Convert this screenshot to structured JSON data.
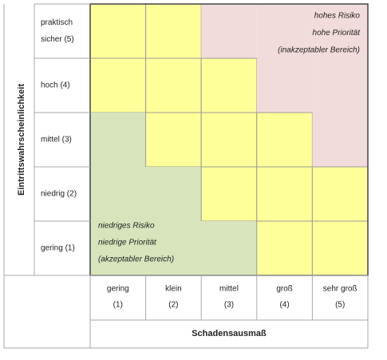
{
  "y_axis_title": "Eintrittswahrscheinlichkeit",
  "x_axis_title": "Schadensausmaß",
  "rows": [
    {
      "lines": [
        "praktisch",
        "sicher  (5)"
      ]
    },
    {
      "lines": [
        "hoch  (4)"
      ]
    },
    {
      "lines": [
        "mittel  (3)"
      ]
    },
    {
      "lines": [
        "niedrig  (2)"
      ]
    },
    {
      "lines": [
        "gering  (1)"
      ]
    }
  ],
  "columns": [
    {
      "lines": [
        "gering",
        "(1)"
      ]
    },
    {
      "lines": [
        "klein",
        "(2)"
      ]
    },
    {
      "lines": [
        "mittel",
        "(3)"
      ]
    },
    {
      "lines": [
        "groß",
        "(4)"
      ]
    },
    {
      "lines": [
        "sehr groß",
        "(5)"
      ]
    }
  ],
  "cell_colors": [
    [
      "#ffff99",
      "#ffff99",
      "#f2dcdb",
      "#f2dcdb",
      "#f2dcdb"
    ],
    [
      "#ffff99",
      "#ffff99",
      "#ffff99",
      "#f2dcdb",
      "#f2dcdb"
    ],
    [
      "#d7e4bc",
      "#ffff99",
      "#ffff99",
      "#ffff99",
      "#f2dcdb"
    ],
    [
      "#d7e4bc",
      "#d7e4bc",
      "#ffff99",
      "#ffff99",
      "#ffff99"
    ],
    [
      "#d7e4bc",
      "#d7e4bc",
      "#d7e4bc",
      "#ffff99",
      "#ffff99"
    ]
  ],
  "outlined_color": "#ffff99",
  "high_zone": {
    "lines": [
      "hohes Risiko",
      "hohe Priorität",
      "(inakzeptabler Bereich)"
    ]
  },
  "low_zone": {
    "lines": [
      "niedriges Risiko",
      "niedrige Priorität",
      "(akzeptabler Bereich)"
    ]
  }
}
